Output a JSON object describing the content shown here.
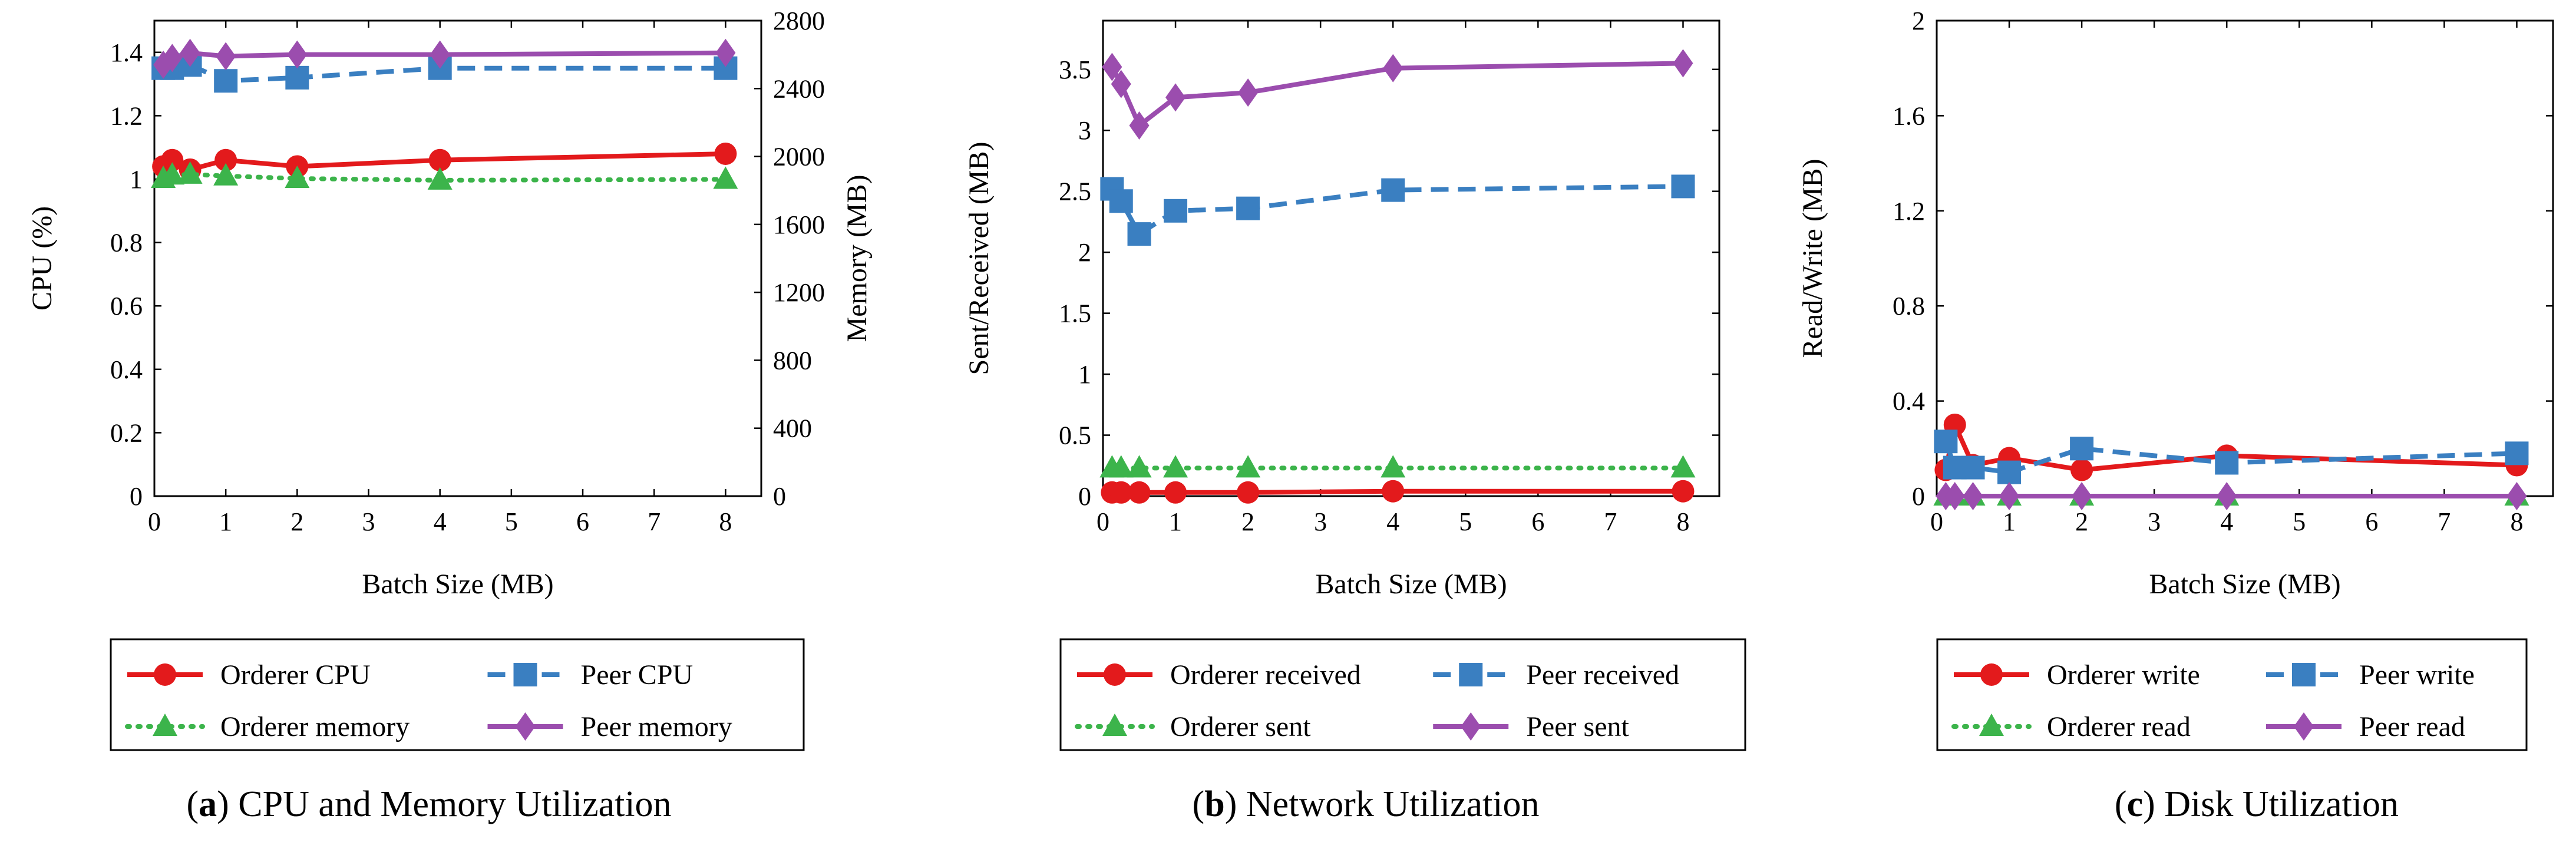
{
  "chart_data": [
    {
      "type": "line",
      "caption_letter": "(a)",
      "caption_text": " CPU and Memory Utilization",
      "xlabel": "Batch Size (MB)",
      "ylabel": "CPU (%)",
      "ylabel_right": "Memory (MB)",
      "xlim": [
        0,
        8.5
      ],
      "ylim": [
        0,
        1.5
      ],
      "ylim_right": [
        0,
        2800
      ],
      "xticks": [
        "0",
        "1",
        "2",
        "3",
        "4",
        "5",
        "6",
        "7",
        "8"
      ],
      "yticks": [
        "0",
        "0.2",
        "0.4",
        "0.6",
        "0.8",
        "1",
        "1.2",
        "1.4"
      ],
      "yticks_right": [
        "0",
        "400",
        "800",
        "1200",
        "1600",
        "2000",
        "2400",
        "2800"
      ],
      "series": [
        {
          "name": "Orderer CPU",
          "axis": "left",
          "color": "#e31a1c",
          "dash": "solid",
          "marker": "circle",
          "x": [
            0.125,
            0.25,
            0.5,
            1,
            2,
            4,
            8
          ],
          "y": [
            1.04,
            1.06,
            1.03,
            1.06,
            1.04,
            1.06,
            1.08
          ]
        },
        {
          "name": "Peer CPU",
          "axis": "left",
          "color": "#3a7fc1",
          "dash": "dashed",
          "marker": "square",
          "x": [
            0.125,
            0.25,
            0.5,
            1,
            2,
            4,
            8
          ],
          "y": [
            1.35,
            1.35,
            1.36,
            1.31,
            1.32,
            1.35,
            1.35
          ]
        },
        {
          "name": "Orderer memory",
          "axis": "right",
          "color": "#3cb44b",
          "dash": "dotted",
          "marker": "triangle",
          "x": [
            0.125,
            0.25,
            0.5,
            1,
            2,
            4,
            8
          ],
          "y": [
            1870,
            1890,
            1895,
            1885,
            1870,
            1860,
            1865
          ]
        },
        {
          "name": "Peer memory",
          "axis": "right",
          "color": "#9b4dae",
          "dash": "solid",
          "marker": "diamond",
          "x": [
            0.125,
            0.25,
            0.5,
            1,
            2,
            4,
            8
          ],
          "y": [
            2540,
            2580,
            2610,
            2590,
            2600,
            2600,
            2610
          ]
        }
      ],
      "legend_order": [
        0,
        1,
        2,
        3
      ]
    },
    {
      "type": "line",
      "caption_letter": "(b)",
      "caption_text": " Network Utilization",
      "xlabel": "Batch Size (MB)",
      "ylabel": "Sent/Received (MB)",
      "xlim": [
        0,
        8.5
      ],
      "ylim": [
        0,
        3.9
      ],
      "xticks": [
        "0",
        "1",
        "2",
        "3",
        "4",
        "5",
        "6",
        "7",
        "8"
      ],
      "yticks": [
        "0",
        "0.5",
        "1",
        "1.5",
        "2",
        "2.5",
        "3",
        "3.5"
      ],
      "series": [
        {
          "name": "Orderer received",
          "axis": "left",
          "color": "#e31a1c",
          "dash": "solid",
          "marker": "circle",
          "x": [
            0.125,
            0.25,
            0.5,
            1,
            2,
            4,
            8
          ],
          "y": [
            0.03,
            0.03,
            0.03,
            0.03,
            0.03,
            0.04,
            0.04
          ]
        },
        {
          "name": "Peer received",
          "axis": "left",
          "color": "#3a7fc1",
          "dash": "dashed",
          "marker": "square",
          "x": [
            0.125,
            0.25,
            0.5,
            1,
            2,
            4,
            8
          ],
          "y": [
            2.52,
            2.42,
            2.15,
            2.34,
            2.36,
            2.51,
            2.54
          ]
        },
        {
          "name": "Orderer sent",
          "axis": "left",
          "color": "#3cb44b",
          "dash": "dotted",
          "marker": "triangle",
          "x": [
            0.125,
            0.25,
            0.5,
            1,
            2,
            4,
            8
          ],
          "y": [
            0.23,
            0.23,
            0.23,
            0.23,
            0.23,
            0.23,
            0.23
          ]
        },
        {
          "name": "Peer sent",
          "axis": "left",
          "color": "#9b4dae",
          "dash": "solid",
          "marker": "diamond",
          "x": [
            0.125,
            0.25,
            0.5,
            1,
            2,
            4,
            8
          ],
          "y": [
            3.52,
            3.38,
            3.04,
            3.27,
            3.31,
            3.51,
            3.55
          ]
        }
      ],
      "legend_order": [
        0,
        1,
        2,
        3
      ]
    },
    {
      "type": "line",
      "caption_letter": "(c)",
      "caption_text": " Disk Utilization",
      "xlabel": "Batch Size (MB)",
      "ylabel": "Read/Write (MB)",
      "xlim": [
        0,
        8.5
      ],
      "ylim": [
        0,
        2.0
      ],
      "xticks": [
        "0",
        "1",
        "2",
        "3",
        "4",
        "5",
        "6",
        "7",
        "8"
      ],
      "yticks": [
        "0",
        "0.4",
        "0.8",
        "1.2",
        "1.6",
        "2"
      ],
      "series": [
        {
          "name": "Orderer write",
          "axis": "left",
          "color": "#e31a1c",
          "dash": "solid",
          "marker": "circle",
          "x": [
            0.125,
            0.25,
            0.5,
            1,
            2,
            4,
            8
          ],
          "y": [
            0.11,
            0.3,
            0.13,
            0.16,
            0.11,
            0.17,
            0.13
          ]
        },
        {
          "name": "Peer write",
          "axis": "left",
          "color": "#3a7fc1",
          "dash": "dashed",
          "marker": "square",
          "x": [
            0.125,
            0.25,
            0.5,
            1,
            2,
            4,
            8
          ],
          "y": [
            0.23,
            0.12,
            0.12,
            0.1,
            0.2,
            0.14,
            0.18
          ]
        },
        {
          "name": "Orderer read",
          "axis": "left",
          "color": "#3cb44b",
          "dash": "dotted",
          "marker": "triangle",
          "x": [
            0.125,
            0.25,
            0.5,
            1,
            2,
            4,
            8
          ],
          "y": [
            0,
            0,
            0,
            0,
            0,
            0,
            0
          ]
        },
        {
          "name": "Peer read",
          "axis": "left",
          "color": "#9b4dae",
          "dash": "solid",
          "marker": "diamond",
          "x": [
            0.125,
            0.25,
            0.5,
            1,
            2,
            4,
            8
          ],
          "y": [
            0,
            0,
            0,
            0,
            0,
            0,
            0
          ]
        }
      ],
      "legend_order": [
        0,
        1,
        2,
        3
      ]
    }
  ]
}
